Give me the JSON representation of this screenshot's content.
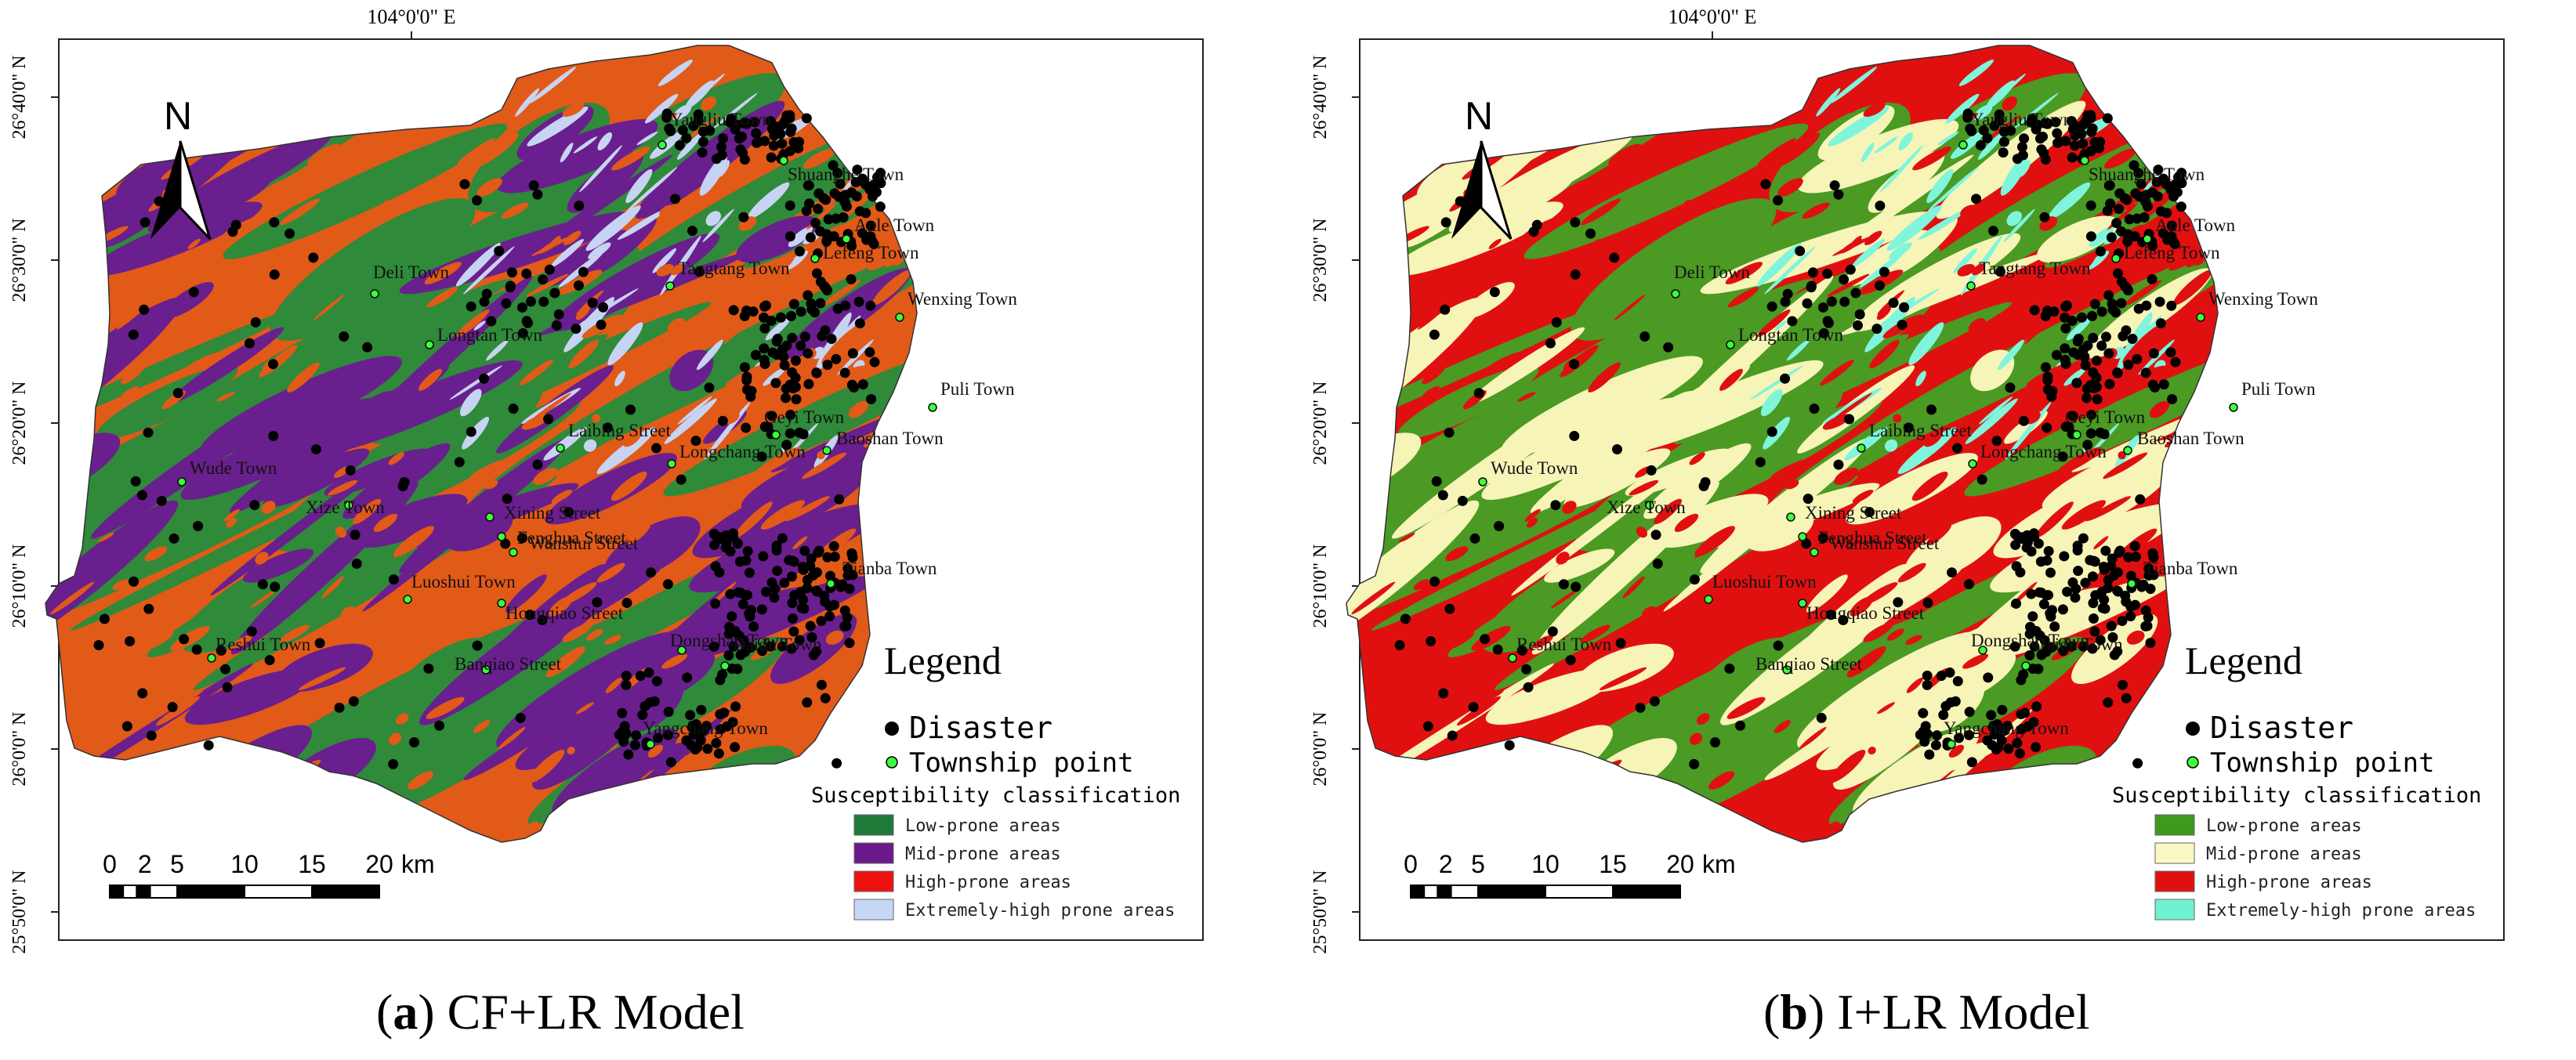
{
  "panels": [
    {
      "id": "a",
      "caption_letter": "a",
      "caption_text": "CF+LR Model",
      "colors": {
        "low": "#2f8a3a",
        "mid": "#6a1f8e",
        "high": "#e25a18",
        "extreme": "#c7d3f2"
      },
      "legend_colors": {
        "low": "#1f7a3a",
        "mid": "#6a1a8a",
        "high": "#ee1111",
        "extreme": "#c6d6f5"
      }
    },
    {
      "id": "b",
      "caption_letter": "b",
      "caption_text": "I+LR Model",
      "colors": {
        "low": "#4a9a24",
        "mid": "#f7f4b8",
        "high": "#e11010",
        "extreme": "#7ff5dc"
      },
      "legend_colors": {
        "low": "#3f9a1c",
        "mid": "#fbf8c4",
        "high": "#e11010",
        "extreme": "#6ff2d4"
      }
    }
  ],
  "axes": {
    "top_label": "104°0'0\" E",
    "lat_labels": [
      "26°40'0\" N",
      "26°30'0\" N",
      "26°20'0\" N",
      "26°10'0\" N",
      "26°0'0\" N",
      "25°50'0\" N"
    ]
  },
  "north_label": "N",
  "legend": {
    "title": "Legend",
    "disaster": "Disaster",
    "township": "Township point",
    "classification_title": "Susceptibility classification",
    "classes": [
      "Low-prone areas",
      "Mid-prone areas",
      "High-prone areas",
      "Extremely-high prone areas"
    ]
  },
  "scale_bar": {
    "ticks": [
      "0",
      "2",
      "5",
      "10",
      "15",
      "20"
    ],
    "unit": "km"
  },
  "towns": [
    "Yangliu Town",
    "Shuanghe Town",
    "Anle Town",
    "Lefeng Town",
    "Wenxing Town",
    "Tangtang Town",
    "Deli Town",
    "Longtan Town",
    "Puli Town",
    "Geyi Town",
    "Laibing Street",
    "Longchang Town",
    "Baoshan Town",
    "Wude Town",
    "Xize Town",
    "Xining Street",
    "Fenghua Street",
    "Wanshui Street",
    "Tianba Town",
    "Luoshui Town",
    "Hongqiao Street",
    "Reshui Town",
    "Dongshan Town",
    "Banqiao Street",
    "Daidu Town",
    "Yangchang Town"
  ]
}
